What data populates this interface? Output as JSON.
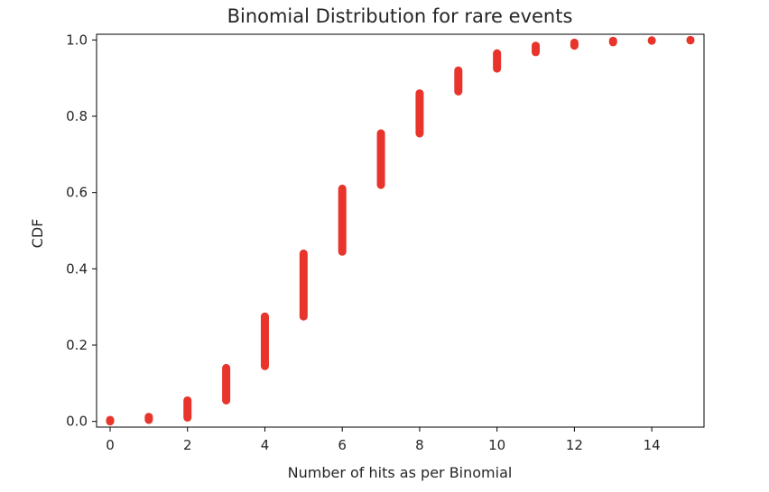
{
  "chart_data": {
    "type": "scatter",
    "title": "Binomial Distribution for rare events",
    "xlabel": "Number of hits as per Binomial",
    "ylabel": "CDF",
    "xlim": [
      -0.35,
      15.35
    ],
    "ylim": [
      -0.015,
      1.015
    ],
    "xticks": [
      0,
      2,
      4,
      6,
      8,
      10,
      12,
      14
    ],
    "xtick_labels": [
      "0",
      "2",
      "4",
      "6",
      "8",
      "10",
      "12",
      "14"
    ],
    "yticks": [
      0.0,
      0.2,
      0.4,
      0.6,
      0.8,
      1.0
    ],
    "ytick_labels": [
      "0.0",
      "0.2",
      "0.4",
      "0.6",
      "0.8",
      "1.0"
    ],
    "grid": false,
    "marker_color": "#e8342a",
    "points_by_x": [
      {
        "x": 0,
        "y_min": 0.0,
        "y_max": 0.004
      },
      {
        "x": 1,
        "y_min": 0.004,
        "y_max": 0.012
      },
      {
        "x": 2,
        "y_min": 0.01,
        "y_max": 0.055
      },
      {
        "x": 3,
        "y_min": 0.055,
        "y_max": 0.14
      },
      {
        "x": 4,
        "y_min": 0.145,
        "y_max": 0.275
      },
      {
        "x": 5,
        "y_min": 0.275,
        "y_max": 0.44
      },
      {
        "x": 6,
        "y_min": 0.445,
        "y_max": 0.61
      },
      {
        "x": 7,
        "y_min": 0.62,
        "y_max": 0.755
      },
      {
        "x": 8,
        "y_min": 0.755,
        "y_max": 0.86
      },
      {
        "x": 9,
        "y_min": 0.865,
        "y_max": 0.92
      },
      {
        "x": 10,
        "y_min": 0.925,
        "y_max": 0.965
      },
      {
        "x": 11,
        "y_min": 0.968,
        "y_max": 0.985
      },
      {
        "x": 12,
        "y_min": 0.985,
        "y_max": 0.993
      },
      {
        "x": 13,
        "y_min": 0.994,
        "y_max": 0.998
      },
      {
        "x": 14,
        "y_min": 0.998,
        "y_max": 0.999
      },
      {
        "x": 15,
        "y_min": 0.999,
        "y_max": 1.0
      }
    ]
  }
}
